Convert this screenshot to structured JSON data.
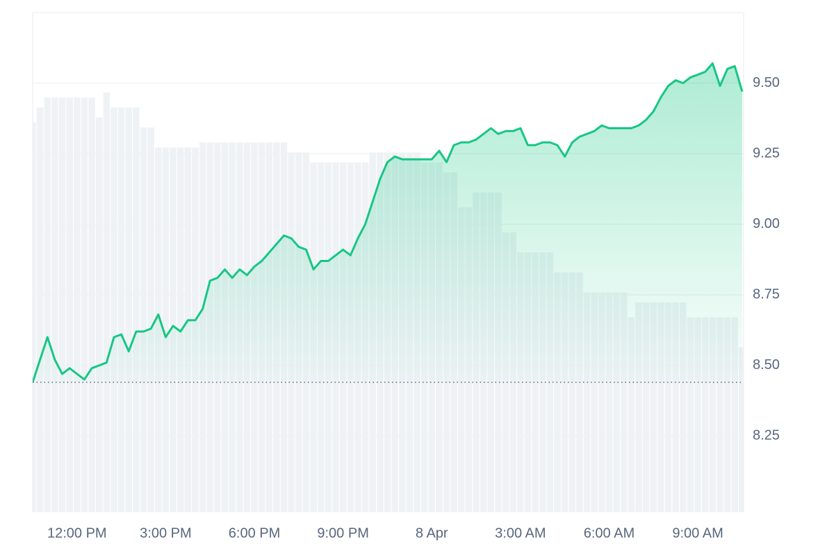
{
  "chart_data": {
    "type": "line",
    "x": [
      10.5,
      10.75,
      11,
      11.25,
      11.5,
      11.75,
      12,
      12.25,
      12.5,
      12.75,
      13,
      13.25,
      13.5,
      13.75,
      14,
      14.25,
      14.5,
      14.75,
      15,
      15.25,
      15.5,
      15.75,
      16,
      16.25,
      16.5,
      16.75,
      17,
      17.25,
      17.5,
      17.75,
      18,
      18.25,
      18.5,
      18.75,
      19,
      19.25,
      19.5,
      19.75,
      20,
      20.25,
      20.5,
      20.75,
      21,
      21.25,
      21.5,
      21.75,
      22,
      22.25,
      22.5,
      22.75,
      23,
      23.25,
      23.5,
      23.75,
      24,
      24.25,
      24.5,
      24.75,
      25,
      25.25,
      25.5,
      25.75,
      26,
      26.25,
      26.5,
      26.75,
      27,
      27.25,
      27.5,
      27.75,
      28,
      28.25,
      28.5,
      28.75,
      29,
      29.25,
      29.5,
      29.75,
      30,
      30.25,
      30.5,
      30.75,
      31,
      31.25,
      31.5,
      31.75,
      32,
      32.25,
      32.5,
      32.75,
      33,
      33.25,
      33.5,
      33.75,
      34,
      34.25,
      34.5
    ],
    "series": [
      {
        "type": "line",
        "color": "#16c784",
        "down_color": "#ea3943",
        "values": [
          8.44,
          8.52,
          8.6,
          8.52,
          8.47,
          8.49,
          8.47,
          8.45,
          8.49,
          8.5,
          8.51,
          8.6,
          8.61,
          8.55,
          8.62,
          8.62,
          8.63,
          8.68,
          8.6,
          8.64,
          8.62,
          8.66,
          8.66,
          8.7,
          8.8,
          8.81,
          8.84,
          8.81,
          8.84,
          8.82,
          8.85,
          8.87,
          8.9,
          8.93,
          8.96,
          8.95,
          8.92,
          8.91,
          8.84,
          8.87,
          8.87,
          8.89,
          8.91,
          8.89,
          8.95,
          9.0,
          9.08,
          9.16,
          9.22,
          9.24,
          9.23,
          9.23,
          9.23,
          9.23,
          9.23,
          9.26,
          9.22,
          9.28,
          9.29,
          9.29,
          9.3,
          9.32,
          9.34,
          9.32,
          9.33,
          9.33,
          9.34,
          9.28,
          9.28,
          9.29,
          9.29,
          9.28,
          9.24,
          9.29,
          9.31,
          9.32,
          9.33,
          9.35,
          9.34,
          9.34,
          9.34,
          9.34,
          9.35,
          9.37,
          9.4,
          9.45,
          9.49,
          9.51,
          9.5,
          9.52,
          9.53,
          9.54,
          9.57,
          9.49,
          9.55,
          9.56,
          9.47
        ]
      },
      {
        "type": "bar",
        "axis": "y2",
        "color": "#eff2f5",
        "values": [
          78,
          81,
          83,
          83,
          83,
          83,
          83,
          83,
          83,
          79,
          84,
          81,
          81,
          81,
          81,
          77,
          77,
          73,
          73,
          73,
          73,
          73,
          73,
          74,
          74,
          74,
          74,
          74,
          74,
          74,
          74,
          74,
          74,
          74,
          74,
          72,
          72,
          72,
          70,
          70,
          70,
          70,
          70,
          70,
          70,
          70,
          72,
          72,
          72,
          72,
          72,
          72,
          72,
          70,
          70,
          70,
          68,
          68,
          61,
          61,
          64,
          64,
          64,
          64,
          56,
          56,
          52,
          52,
          52,
          52,
          52,
          48,
          48,
          48,
          48,
          44,
          44,
          44,
          44,
          44,
          44,
          39,
          42,
          42,
          42,
          42,
          42,
          42,
          42,
          39,
          39,
          39,
          39,
          39,
          39,
          39,
          33
        ]
      }
    ],
    "baseline": 8.44,
    "xlim": [
      10.5,
      34.55
    ],
    "xticks": [
      {
        "value": 12,
        "label": "12:00 PM"
      },
      {
        "value": 15,
        "label": "3:00 PM"
      },
      {
        "value": 18,
        "label": "6:00 PM"
      },
      {
        "value": 21,
        "label": "9:00 PM"
      },
      {
        "value": 24,
        "label": "8 Apr"
      },
      {
        "value": 27,
        "label": "3:00 AM"
      },
      {
        "value": 30,
        "label": "6:00 AM"
      },
      {
        "value": 33,
        "label": "9:00 AM"
      }
    ],
    "ylim": [
      7.98,
      9.75
    ],
    "yticks": [
      8.25,
      {
        "value": 8.5,
        "label": "8.50"
      },
      8.75,
      {
        "value": 9,
        "label": "9.00"
      },
      9.25,
      {
        "value": 9.5,
        "label": "9.50"
      }
    ],
    "y2lim": [
      0,
      100
    ],
    "grid": true
  }
}
